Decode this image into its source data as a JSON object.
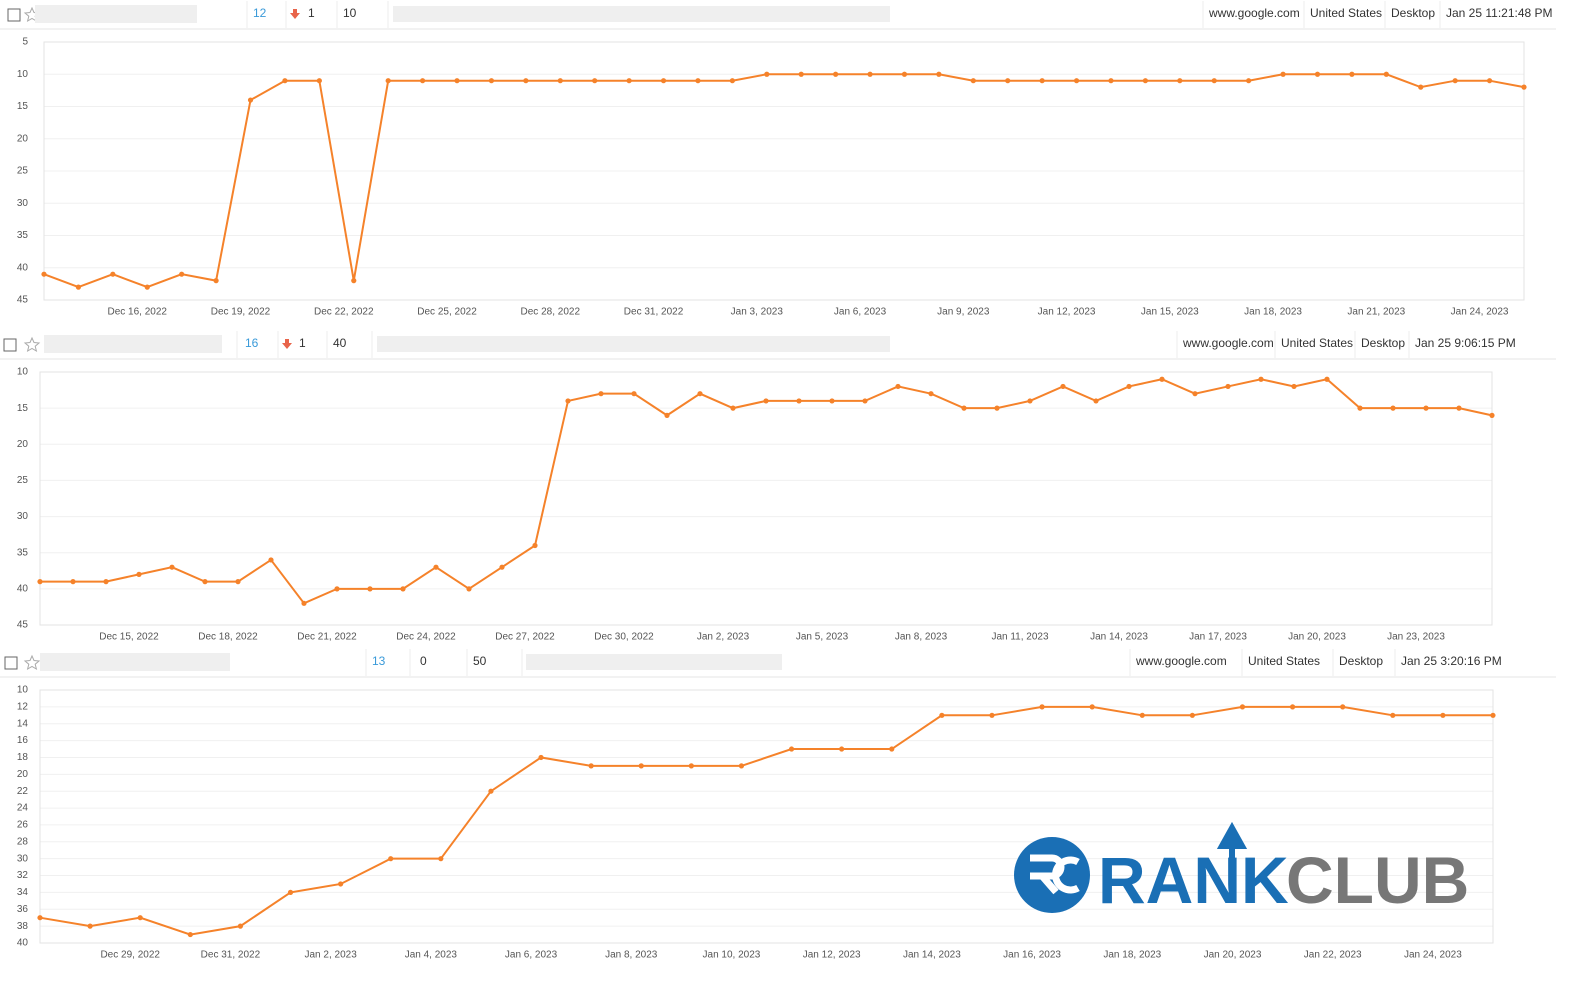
{
  "rows": [
    {
      "rank": "12",
      "change": "1",
      "change_direction": "down",
      "volume": "10",
      "engine": "www.google.com",
      "country": "United States",
      "device": "Desktop",
      "date": "Jan 25 11:21:48 PM"
    },
    {
      "rank": "16",
      "change": "1",
      "change_direction": "down",
      "volume": "40",
      "engine": "www.google.com",
      "country": "United States",
      "device": "Desktop",
      "date": "Jan 25 9:06:15 PM"
    },
    {
      "rank": "13",
      "change": "0",
      "volume": "50",
      "engine": "www.google.com",
      "country": "United States",
      "device": "Desktop",
      "date": "Jan 25 3:20:16 PM"
    }
  ],
  "watermark": {
    "left": "RANK",
    "right": "CLUB"
  },
  "chart_data": [
    {
      "type": "line",
      "color": "#f5822a",
      "grid": true,
      "categories": [
        null,
        null,
        null,
        "Dec 16, 2022",
        null,
        null,
        "Dec 19, 2022",
        null,
        null,
        "Dec 22, 2022",
        null,
        null,
        "Dec 25, 2022",
        null,
        null,
        "Dec 28, 2022",
        null,
        null,
        "Dec 31, 2022",
        null,
        null,
        "Jan 3, 2023",
        null,
        null,
        "Jan 6, 2023",
        null,
        null,
        "Jan 9, 2023",
        null,
        null,
        "Jan 12, 2023",
        null,
        null,
        "Jan 15, 2023",
        null,
        null,
        "Jan 18, 2023",
        null,
        null,
        "Jan 21, 2023",
        null,
        null,
        "Jan 24, 2023",
        null
      ],
      "values": [
        41,
        43,
        41,
        43,
        41,
        42,
        14,
        11,
        11,
        42,
        11,
        11,
        11,
        11,
        11,
        11,
        11,
        11,
        11,
        11,
        11,
        10,
        10,
        10,
        10,
        10,
        10,
        11,
        11,
        11,
        11,
        11,
        11,
        11,
        11,
        11,
        10,
        10,
        10,
        10,
        12,
        11,
        11,
        12
      ],
      "ylim": [
        45,
        5
      ],
      "yticks": [
        5,
        10,
        15,
        20,
        25,
        30,
        35,
        40,
        45
      ]
    },
    {
      "type": "line",
      "color": "#f5822a",
      "grid": true,
      "categories": [
        null,
        null,
        null,
        "Dec 15, 2022",
        null,
        null,
        "Dec 18, 2022",
        null,
        null,
        "Dec 21, 2022",
        null,
        null,
        "Dec 24, 2022",
        null,
        null,
        "Dec 27, 2022",
        null,
        null,
        "Dec 30, 2022",
        null,
        null,
        "Jan 2, 2023",
        null,
        null,
        "Jan 5, 2023",
        null,
        null,
        "Jan 8, 2023",
        null,
        null,
        "Jan 11, 2023",
        null,
        null,
        "Jan 14, 2023",
        null,
        null,
        "Jan 17, 2023",
        null,
        null,
        "Jan 20, 2023",
        null,
        null,
        "Jan 23, 2023",
        null,
        null
      ],
      "values": [
        39,
        39,
        39,
        38,
        37,
        39,
        39,
        36,
        42,
        40,
        40,
        40,
        37,
        40,
        37,
        34,
        14,
        13,
        13,
        16,
        13,
        15,
        14,
        14,
        14,
        14,
        12,
        13,
        15,
        15,
        14,
        12,
        14,
        12,
        11,
        13,
        12,
        11,
        12,
        11,
        15,
        15,
        15,
        15,
        16
      ],
      "ylim": [
        45,
        10
      ],
      "yticks": [
        10,
        15,
        20,
        25,
        30,
        35,
        40,
        45
      ]
    },
    {
      "type": "line",
      "color": "#f5822a",
      "grid": true,
      "categories": [
        null,
        null,
        "Dec 29, 2022",
        null,
        "Dec 31, 2022",
        null,
        "Jan 2, 2023",
        null,
        "Jan 4, 2023",
        null,
        "Jan 6, 2023",
        null,
        "Jan 8, 2023",
        null,
        "Jan 10, 2023",
        null,
        "Jan 12, 2023",
        null,
        "Jan 14, 2023",
        null,
        "Jan 16, 2023",
        null,
        "Jan 18, 2023",
        null,
        "Jan 20, 2023",
        null,
        "Jan 22, 2023",
        null,
        "Jan 24, 2023",
        null
      ],
      "values": [
        37,
        38,
        37,
        39,
        38,
        34,
        33,
        30,
        30,
        22,
        18,
        19,
        19,
        19,
        19,
        17,
        17,
        17,
        13,
        13,
        12,
        12,
        13,
        13,
        12,
        12,
        12,
        13,
        13,
        13
      ],
      "ylim": [
        40,
        10
      ],
      "yticks": [
        10,
        12,
        14,
        16,
        18,
        20,
        22,
        24,
        26,
        28,
        30,
        32,
        34,
        36,
        38,
        40
      ]
    }
  ]
}
